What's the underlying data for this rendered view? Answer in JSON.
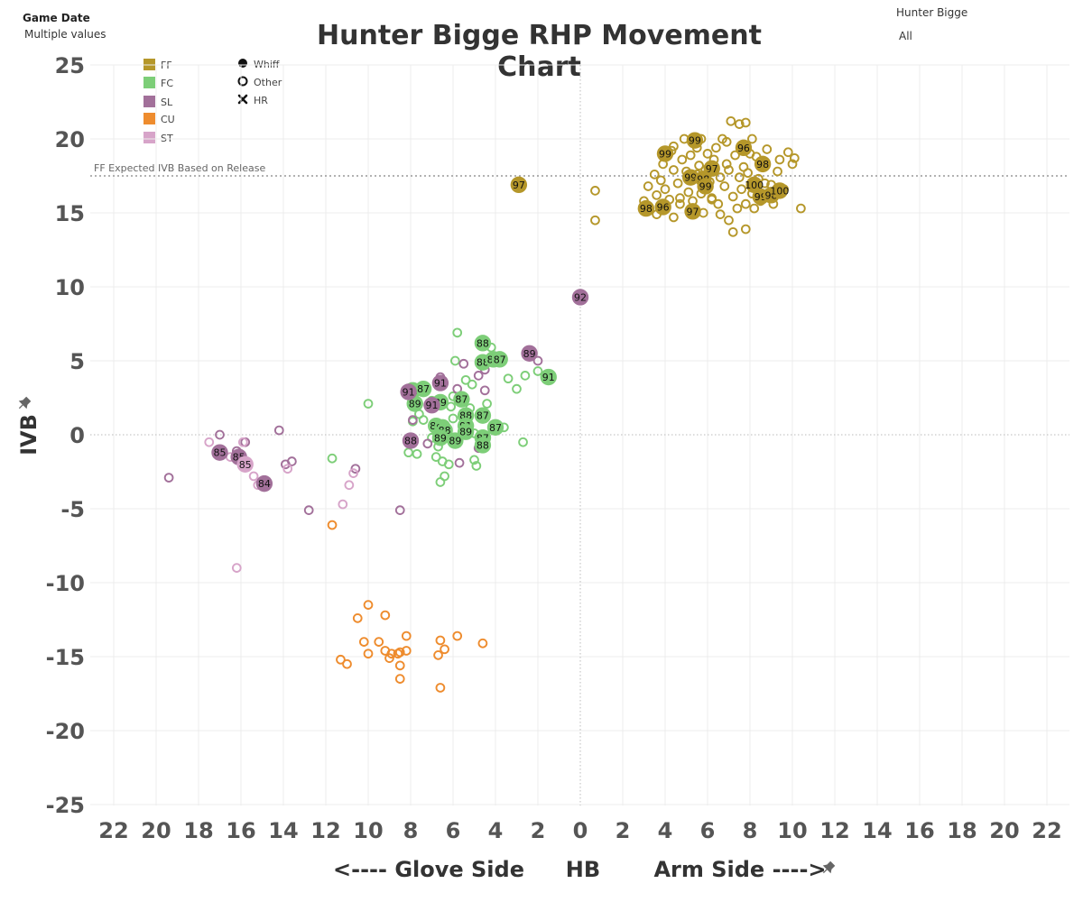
{
  "filters": {
    "game_date_label": "Game Date",
    "game_date_value": "Multiple values",
    "pitcher_label": "Hunter Bigge",
    "pitcher_value": "All"
  },
  "title": "Hunter Bigge RHP Movement Chart",
  "legend": {
    "pitch_types": [
      {
        "code": "FF",
        "color": "#b5972a"
      },
      {
        "code": "FC",
        "color": "#7dce78"
      },
      {
        "code": "SL",
        "color": "#a2709a"
      },
      {
        "code": "CU",
        "color": "#ee8c2e"
      },
      {
        "code": "ST",
        "color": "#d7a4c9"
      }
    ],
    "outcomes": [
      {
        "label": "Whiff",
        "marker": "filled-circle"
      },
      {
        "label": "Other",
        "marker": "open-circle"
      },
      {
        "label": "HR",
        "marker": "x"
      }
    ]
  },
  "chart_data": {
    "type": "scatter",
    "title": "Hunter Bigge RHP Movement Chart",
    "xlabel_left": "<---- Glove Side",
    "xlabel_center": "HB",
    "xlabel_right": "Arm Side ---->",
    "ylabel": "IVB",
    "xlim": [
      -23,
      23
    ],
    "ylim": [
      -26,
      26
    ],
    "x_ticks": [
      -22,
      -20,
      -18,
      -16,
      -14,
      -12,
      -10,
      -8,
      -6,
      -4,
      -2,
      0,
      2,
      4,
      6,
      8,
      10,
      12,
      14,
      16,
      18,
      20,
      22
    ],
    "x_tick_labels": [
      "22",
      "20",
      "18",
      "16",
      "14",
      "12",
      "10",
      "8",
      "6",
      "4",
      "2",
      "0",
      "2",
      "4",
      "6",
      "8",
      "10",
      "12",
      "14",
      "16",
      "18",
      "20",
      "22"
    ],
    "y_ticks": [
      25,
      20,
      15,
      10,
      5,
      0,
      -5,
      -10,
      -15,
      -20,
      -25
    ],
    "grid": true,
    "reference_line": {
      "label": "FF Expected IVB Based on Release",
      "y": 17.5
    },
    "series": [
      {
        "name": "FF",
        "color": "#b5972a",
        "whiff": [
          {
            "x": -2.9,
            "y": 16.9,
            "velo": "97"
          },
          {
            "x": 4.0,
            "y": 19.0,
            "velo": "99"
          },
          {
            "x": 5.4,
            "y": 19.9,
            "velo": "99"
          },
          {
            "x": 7.7,
            "y": 19.4,
            "velo": "96"
          },
          {
            "x": 8.6,
            "y": 18.3,
            "velo": "98"
          },
          {
            "x": 6.2,
            "y": 18.0,
            "velo": "97"
          },
          {
            "x": 5.2,
            "y": 17.4,
            "velo": "99"
          },
          {
            "x": 5.8,
            "y": 17.3,
            "velo": "98"
          },
          {
            "x": 5.9,
            "y": 16.8,
            "velo": "99"
          },
          {
            "x": 8.2,
            "y": 16.9,
            "velo": "100"
          },
          {
            "x": 8.5,
            "y": 16.1,
            "velo": "99"
          },
          {
            "x": 9.0,
            "y": 16.2,
            "velo": "98"
          },
          {
            "x": 9.4,
            "y": 16.5,
            "velo": "100"
          },
          {
            "x": 3.1,
            "y": 15.3,
            "velo": "98"
          },
          {
            "x": 3.9,
            "y": 15.4,
            "velo": "96"
          },
          {
            "x": 5.3,
            "y": 15.1,
            "velo": "97"
          }
        ],
        "other": [
          {
            "x": 0.7,
            "y": 16.5
          },
          {
            "x": 0.7,
            "y": 14.5
          },
          {
            "x": 3.0,
            "y": 15.8
          },
          {
            "x": 3.2,
            "y": 16.8
          },
          {
            "x": 3.5,
            "y": 17.6
          },
          {
            "x": 3.6,
            "y": 16.2
          },
          {
            "x": 3.8,
            "y": 17.2
          },
          {
            "x": 3.9,
            "y": 18.3
          },
          {
            "x": 4.0,
            "y": 16.6
          },
          {
            "x": 4.2,
            "y": 15.9
          },
          {
            "x": 4.3,
            "y": 19.2
          },
          {
            "x": 4.4,
            "y": 17.9
          },
          {
            "x": 4.4,
            "y": 14.7
          },
          {
            "x": 4.6,
            "y": 17.0
          },
          {
            "x": 4.7,
            "y": 16.0
          },
          {
            "x": 4.8,
            "y": 18.6
          },
          {
            "x": 4.9,
            "y": 20.0
          },
          {
            "x": 5.0,
            "y": 17.8
          },
          {
            "x": 5.1,
            "y": 16.4
          },
          {
            "x": 5.2,
            "y": 18.9
          },
          {
            "x": 5.3,
            "y": 15.8
          },
          {
            "x": 5.5,
            "y": 17.6
          },
          {
            "x": 5.5,
            "y": 19.4
          },
          {
            "x": 5.6,
            "y": 18.2
          },
          {
            "x": 5.7,
            "y": 16.3
          },
          {
            "x": 5.8,
            "y": 15.0
          },
          {
            "x": 5.9,
            "y": 17.9
          },
          {
            "x": 6.0,
            "y": 19.0
          },
          {
            "x": 6.1,
            "y": 17.1
          },
          {
            "x": 6.2,
            "y": 16.0
          },
          {
            "x": 6.3,
            "y": 18.6
          },
          {
            "x": 6.4,
            "y": 19.4
          },
          {
            "x": 6.5,
            "y": 15.6
          },
          {
            "x": 6.6,
            "y": 17.4
          },
          {
            "x": 6.7,
            "y": 20.0
          },
          {
            "x": 6.8,
            "y": 16.8
          },
          {
            "x": 6.9,
            "y": 18.3
          },
          {
            "x": 7.0,
            "y": 14.5
          },
          {
            "x": 7.0,
            "y": 17.9
          },
          {
            "x": 7.1,
            "y": 21.2
          },
          {
            "x": 7.2,
            "y": 16.1
          },
          {
            "x": 7.3,
            "y": 18.9
          },
          {
            "x": 7.4,
            "y": 15.3
          },
          {
            "x": 7.5,
            "y": 17.4
          },
          {
            "x": 7.5,
            "y": 21.0
          },
          {
            "x": 7.6,
            "y": 16.6
          },
          {
            "x": 7.7,
            "y": 18.1
          },
          {
            "x": 7.8,
            "y": 21.1
          },
          {
            "x": 7.8,
            "y": 15.6
          },
          {
            "x": 7.9,
            "y": 17.7
          },
          {
            "x": 8.0,
            "y": 19.0
          },
          {
            "x": 8.1,
            "y": 16.3
          },
          {
            "x": 8.2,
            "y": 15.3
          },
          {
            "x": 8.3,
            "y": 18.8
          },
          {
            "x": 8.4,
            "y": 17.3
          },
          {
            "x": 8.5,
            "y": 15.8
          },
          {
            "x": 8.7,
            "y": 17.0
          },
          {
            "x": 8.8,
            "y": 19.3
          },
          {
            "x": 9.0,
            "y": 16.9
          },
          {
            "x": 9.1,
            "y": 15.6
          },
          {
            "x": 9.3,
            "y": 17.8
          },
          {
            "x": 9.4,
            "y": 18.6
          },
          {
            "x": 9.6,
            "y": 16.6
          },
          {
            "x": 9.8,
            "y": 19.1
          },
          {
            "x": 10.0,
            "y": 18.3
          },
          {
            "x": 10.1,
            "y": 18.7
          },
          {
            "x": 10.4,
            "y": 15.3
          },
          {
            "x": 6.6,
            "y": 14.9
          },
          {
            "x": 7.2,
            "y": 13.7
          },
          {
            "x": 7.8,
            "y": 13.9
          },
          {
            "x": 4.4,
            "y": 19.5
          },
          {
            "x": 5.7,
            "y": 20.0
          },
          {
            "x": 6.9,
            "y": 19.8
          },
          {
            "x": 8.1,
            "y": 20.0
          },
          {
            "x": 3.6,
            "y": 14.9
          },
          {
            "x": 4.7,
            "y": 15.6
          },
          {
            "x": 6.2,
            "y": 15.9
          }
        ]
      },
      {
        "name": "FC",
        "color": "#7dce78",
        "whiff": [
          {
            "x": -4.6,
            "y": 6.2,
            "velo": "88"
          },
          {
            "x": -4.6,
            "y": 4.9,
            "velo": "88"
          },
          {
            "x": -4.1,
            "y": 5.1,
            "velo": "86"
          },
          {
            "x": -3.8,
            "y": 5.1,
            "velo": "87"
          },
          {
            "x": -1.5,
            "y": 3.9,
            "velo": "91"
          },
          {
            "x": -7.9,
            "y": 3.0,
            "velo": "90"
          },
          {
            "x": -7.4,
            "y": 3.1,
            "velo": "87"
          },
          {
            "x": -7.8,
            "y": 2.1,
            "velo": "89"
          },
          {
            "x": -6.6,
            "y": 2.2,
            "velo": "89"
          },
          {
            "x": -5.6,
            "y": 2.4,
            "velo": "87"
          },
          {
            "x": -5.4,
            "y": 1.3,
            "velo": "88"
          },
          {
            "x": -4.6,
            "y": 1.3,
            "velo": "87"
          },
          {
            "x": -4.0,
            "y": 0.5,
            "velo": "87"
          },
          {
            "x": -6.8,
            "y": 0.6,
            "velo": "87"
          },
          {
            "x": -6.5,
            "y": 0.5,
            "velo": "91"
          },
          {
            "x": -6.4,
            "y": 0.3,
            "velo": "88"
          },
          {
            "x": -5.4,
            "y": 0.6,
            "velo": "91"
          },
          {
            "x": -5.4,
            "y": 0.2,
            "velo": "89"
          },
          {
            "x": -6.6,
            "y": -0.2,
            "velo": "89"
          },
          {
            "x": -5.9,
            "y": -0.4,
            "velo": "89"
          },
          {
            "x": -4.6,
            "y": -0.2,
            "velo": "89"
          },
          {
            "x": -4.6,
            "y": -0.2,
            "velo": "87"
          },
          {
            "x": -4.6,
            "y": -0.7,
            "velo": "88"
          }
        ],
        "other": [
          {
            "x": -5.8,
            "y": 6.9
          },
          {
            "x": -4.2,
            "y": 5.9
          },
          {
            "x": -5.9,
            "y": 5.0
          },
          {
            "x": -2.0,
            "y": 4.3
          },
          {
            "x": -2.6,
            "y": 4.0
          },
          {
            "x": -3.4,
            "y": 3.8
          },
          {
            "x": -3.0,
            "y": 3.1
          },
          {
            "x": -5.4,
            "y": 3.7
          },
          {
            "x": -5.1,
            "y": 3.4
          },
          {
            "x": -6.0,
            "y": 2.6
          },
          {
            "x": -7.0,
            "y": 2.3
          },
          {
            "x": -6.1,
            "y": 1.9
          },
          {
            "x": -7.6,
            "y": 1.4
          },
          {
            "x": -5.2,
            "y": 1.8
          },
          {
            "x": -4.4,
            "y": 2.1
          },
          {
            "x": -10.0,
            "y": 2.1
          },
          {
            "x": -7.9,
            "y": 0.9
          },
          {
            "x": -7.4,
            "y": 1.0
          },
          {
            "x": -6.0,
            "y": 1.1
          },
          {
            "x": -3.6,
            "y": 0.5
          },
          {
            "x": -7.0,
            "y": -0.2
          },
          {
            "x": -5.0,
            "y": 0.1
          },
          {
            "x": -2.7,
            "y": -0.5
          },
          {
            "x": -8.1,
            "y": -1.2
          },
          {
            "x": -7.7,
            "y": -1.3
          },
          {
            "x": -6.8,
            "y": -1.5
          },
          {
            "x": -6.7,
            "y": -0.8
          },
          {
            "x": -6.5,
            "y": -1.8
          },
          {
            "x": -6.2,
            "y": -2.0
          },
          {
            "x": -5.0,
            "y": -1.7
          },
          {
            "x": -4.9,
            "y": -2.1
          },
          {
            "x": -6.4,
            "y": -2.8
          },
          {
            "x": -6.6,
            "y": -3.2
          },
          {
            "x": -11.7,
            "y": -1.6
          }
        ]
      },
      {
        "name": "SL",
        "color": "#a2709a",
        "whiff": [
          {
            "x": -2.4,
            "y": 5.5,
            "velo": "89"
          },
          {
            "x": 0.0,
            "y": 9.3,
            "velo": "92"
          },
          {
            "x": -6.6,
            "y": 3.5,
            "velo": "91"
          },
          {
            "x": -8.1,
            "y": 2.9,
            "velo": "91"
          },
          {
            "x": -7.0,
            "y": 2.0,
            "velo": "91"
          },
          {
            "x": -8.0,
            "y": -0.4,
            "velo": "88"
          },
          {
            "x": -17.0,
            "y": -1.2,
            "velo": "85"
          },
          {
            "x": -16.1,
            "y": -1.5,
            "velo": "85"
          },
          {
            "x": -14.9,
            "y": -3.3,
            "velo": "84"
          }
        ],
        "other": [
          {
            "x": -2.0,
            "y": 5.0
          },
          {
            "x": -4.0,
            "y": 5.3
          },
          {
            "x": -4.5,
            "y": 4.4
          },
          {
            "x": -4.8,
            "y": 4.0
          },
          {
            "x": -5.5,
            "y": 4.8
          },
          {
            "x": -6.6,
            "y": 3.9
          },
          {
            "x": -4.5,
            "y": 3.0
          },
          {
            "x": -7.9,
            "y": 1.0
          },
          {
            "x": -5.8,
            "y": 3.1
          },
          {
            "x": -5.7,
            "y": -1.9
          },
          {
            "x": -4.8,
            "y": -0.9
          },
          {
            "x": -7.2,
            "y": -0.6
          },
          {
            "x": -8.5,
            "y": -5.1
          },
          {
            "x": -12.8,
            "y": -5.1
          },
          {
            "x": -10.6,
            "y": -2.3
          },
          {
            "x": -13.6,
            "y": -1.8
          },
          {
            "x": -13.9,
            "y": -2.0
          },
          {
            "x": -14.2,
            "y": 0.3
          },
          {
            "x": -16.2,
            "y": -1.1
          },
          {
            "x": -17.0,
            "y": 0.0
          },
          {
            "x": -19.4,
            "y": -2.9
          },
          {
            "x": -15.8,
            "y": -0.5
          }
        ]
      },
      {
        "name": "CU",
        "color": "#ee8c2e",
        "whiff": [],
        "other": [
          {
            "x": -10.0,
            "y": -11.5
          },
          {
            "x": -9.2,
            "y": -12.2
          },
          {
            "x": -10.5,
            "y": -12.4
          },
          {
            "x": -8.2,
            "y": -13.6
          },
          {
            "x": -6.6,
            "y": -13.9
          },
          {
            "x": -5.8,
            "y": -13.6
          },
          {
            "x": -4.6,
            "y": -14.1
          },
          {
            "x": -10.2,
            "y": -14.0
          },
          {
            "x": -9.5,
            "y": -14.0
          },
          {
            "x": -9.2,
            "y": -14.6
          },
          {
            "x": -8.9,
            "y": -14.8
          },
          {
            "x": -9.0,
            "y": -15.1
          },
          {
            "x": -8.2,
            "y": -14.6
          },
          {
            "x": -8.6,
            "y": -14.8
          },
          {
            "x": -8.5,
            "y": -14.7
          },
          {
            "x": -6.4,
            "y": -14.5
          },
          {
            "x": -6.7,
            "y": -14.9
          },
          {
            "x": -10.0,
            "y": -14.8
          },
          {
            "x": -11.3,
            "y": -15.2
          },
          {
            "x": -11.0,
            "y": -15.5
          },
          {
            "x": -8.5,
            "y": -15.6
          },
          {
            "x": -8.5,
            "y": -16.5
          },
          {
            "x": -6.6,
            "y": -17.1
          },
          {
            "x": -11.7,
            "y": -6.1
          }
        ]
      },
      {
        "name": "ST",
        "color": "#d7a4c9",
        "whiff": [
          {
            "x": -15.8,
            "y": -2.0,
            "velo": "85"
          }
        ],
        "other": [
          {
            "x": -17.5,
            "y": -0.5
          },
          {
            "x": -15.9,
            "y": -0.5
          },
          {
            "x": -16.5,
            "y": -1.5
          },
          {
            "x": -15.4,
            "y": -2.8
          },
          {
            "x": -15.2,
            "y": -3.4
          },
          {
            "x": -13.8,
            "y": -2.3
          },
          {
            "x": -11.2,
            "y": -4.7
          },
          {
            "x": -10.9,
            "y": -3.4
          },
          {
            "x": -10.7,
            "y": -2.6
          },
          {
            "x": -16.2,
            "y": -9.0
          }
        ]
      }
    ]
  }
}
